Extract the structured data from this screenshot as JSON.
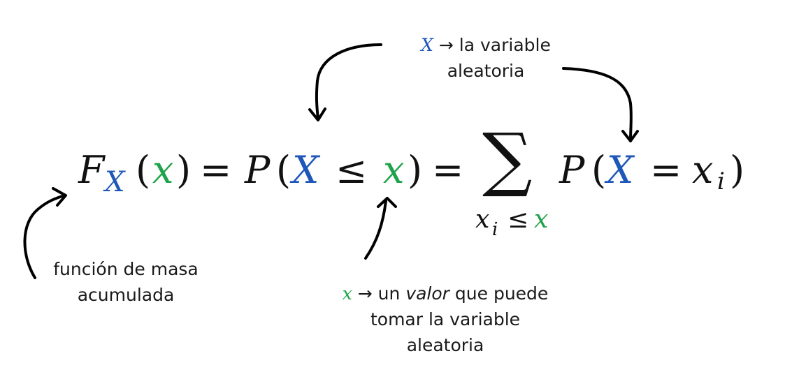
{
  "colors": {
    "random_variable": "#1f57b8",
    "value": "#1fa34a",
    "text": "#1a1a1a"
  },
  "formula": {
    "F": "F",
    "F_sub": "X",
    "open1": "(",
    "x1": "x",
    "close1": ")",
    "eq1": "=",
    "P1": "P",
    "open2": "(",
    "X2": "X",
    "le": "≤",
    "x2": "x",
    "close2": ")",
    "eq2": "=",
    "sum": "∑",
    "sum_sub_x": "x",
    "sum_sub_i": "i",
    "sum_sub_le": "≤",
    "sum_sub_xval": "x",
    "P2": "P",
    "open3": "(",
    "X3": "X",
    "eq3": "=",
    "xi": "x",
    "xi_sub": "i",
    "close3": ")"
  },
  "notes": {
    "random_variable": {
      "symbol": "X",
      "arrow": "→",
      "line1_rest": "la variable",
      "line2": "aleatoria"
    },
    "cdf": {
      "line1": "función de masa",
      "line2": "acumulada"
    },
    "value": {
      "symbol": "x",
      "arrow": "→",
      "un": "un",
      "valor": "valor",
      "que_puede": "que puede",
      "line2": "tomar la variable",
      "line3": "aleatoria"
    }
  }
}
